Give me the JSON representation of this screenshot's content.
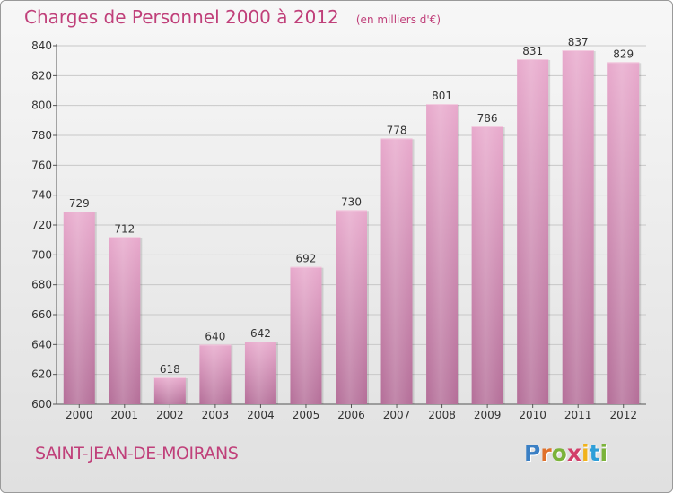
{
  "title": "Charges de Personnel 2000 à 2012",
  "subtitle": "(en milliers d'€)",
  "city": "SAINT-JEAN-DE-MOIRANS",
  "logo": {
    "letters": [
      "P",
      "r",
      "o",
      "x",
      "i",
      "t",
      "i"
    ],
    "colors": [
      "#3a7fc4",
      "#e0712a",
      "#7bb33a",
      "#d23f6a",
      "#f1b31c",
      "#2f9fd8",
      "#7bb33a"
    ]
  },
  "colors": {
    "bar": "#d98fb8",
    "accent": "#c0407a",
    "grid": "#c8c8c8"
  },
  "chart_data": {
    "type": "bar",
    "title": "Charges de Personnel 2000 à 2012",
    "subtitle": "(en milliers d'€)",
    "categories": [
      "2000",
      "2001",
      "2002",
      "2003",
      "2004",
      "2005",
      "2006",
      "2007",
      "2008",
      "2009",
      "2010",
      "2011",
      "2012"
    ],
    "values": [
      729,
      712,
      618,
      640,
      642,
      692,
      730,
      778,
      801,
      786,
      831,
      837,
      829
    ],
    "ylim": [
      600,
      840
    ],
    "yticks": [
      600,
      620,
      640,
      660,
      680,
      700,
      720,
      740,
      760,
      780,
      800,
      820,
      840
    ],
    "grid": true,
    "data_labels": true
  }
}
